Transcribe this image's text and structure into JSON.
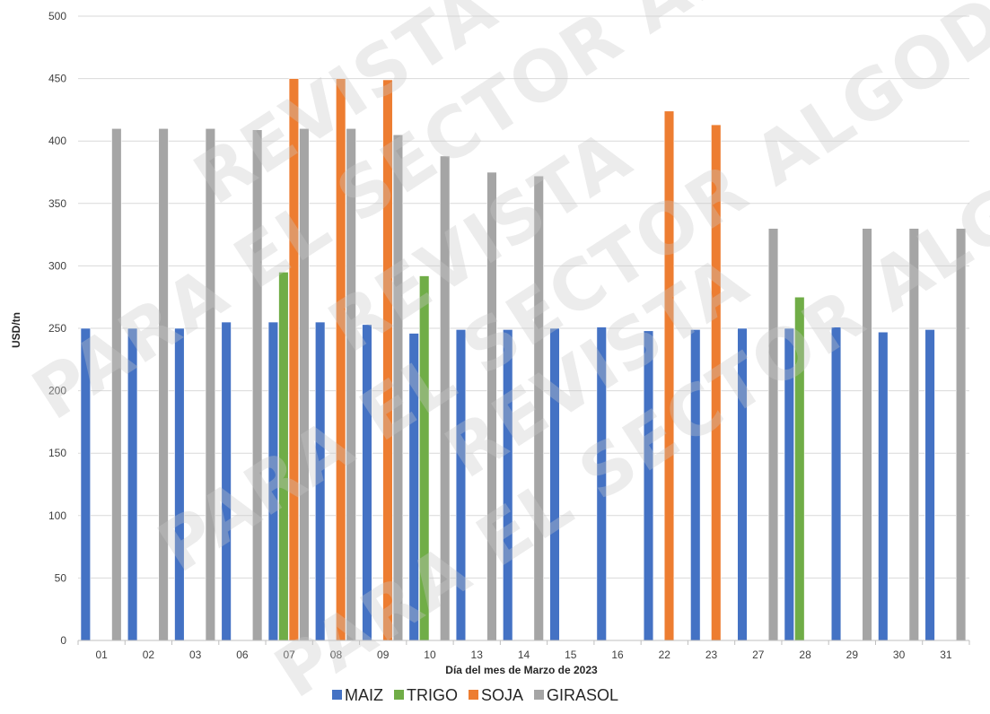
{
  "chart_data": {
    "type": "bar",
    "title": "",
    "xlabel": "Día del mes de Marzo de 2023",
    "ylabel": "USD/tn",
    "ylim": [
      0,
      500
    ],
    "yticks": [
      0,
      50,
      100,
      150,
      200,
      250,
      300,
      350,
      400,
      450,
      500
    ],
    "grid": true,
    "legend_position": "bottom",
    "categories": [
      "01",
      "02",
      "03",
      "06",
      "07",
      "08",
      "09",
      "10",
      "13",
      "14",
      "15",
      "16",
      "22",
      "23",
      "27",
      "28",
      "29",
      "30",
      "31"
    ],
    "series": [
      {
        "name": "MAIZ",
        "color": "#4472C4",
        "values": [
          250,
          250,
          250,
          255,
          255,
          255,
          253,
          246,
          249,
          249,
          250,
          251,
          248,
          249,
          250,
          250,
          251,
          247,
          249
        ]
      },
      {
        "name": "TRIGO",
        "color": "#70AD47",
        "values": [
          null,
          null,
          null,
          null,
          295,
          null,
          null,
          292,
          null,
          null,
          null,
          null,
          null,
          null,
          null,
          275,
          null,
          null,
          null
        ]
      },
      {
        "name": "SOJA",
        "color": "#ED7D31",
        "values": [
          null,
          null,
          null,
          null,
          450,
          450,
          449,
          null,
          null,
          null,
          null,
          null,
          424,
          413,
          null,
          null,
          null,
          null,
          null
        ]
      },
      {
        "name": "GIRASOL",
        "color": "#A5A5A5",
        "values": [
          410,
          410,
          410,
          409,
          410,
          410,
          405,
          388,
          375,
          372,
          null,
          null,
          null,
          null,
          330,
          null,
          330,
          330,
          330
        ]
      }
    ]
  },
  "watermark": {
    "lines": [
      "REVISTA",
      "PARA EL SECTOR ALGODONERO"
    ]
  }
}
